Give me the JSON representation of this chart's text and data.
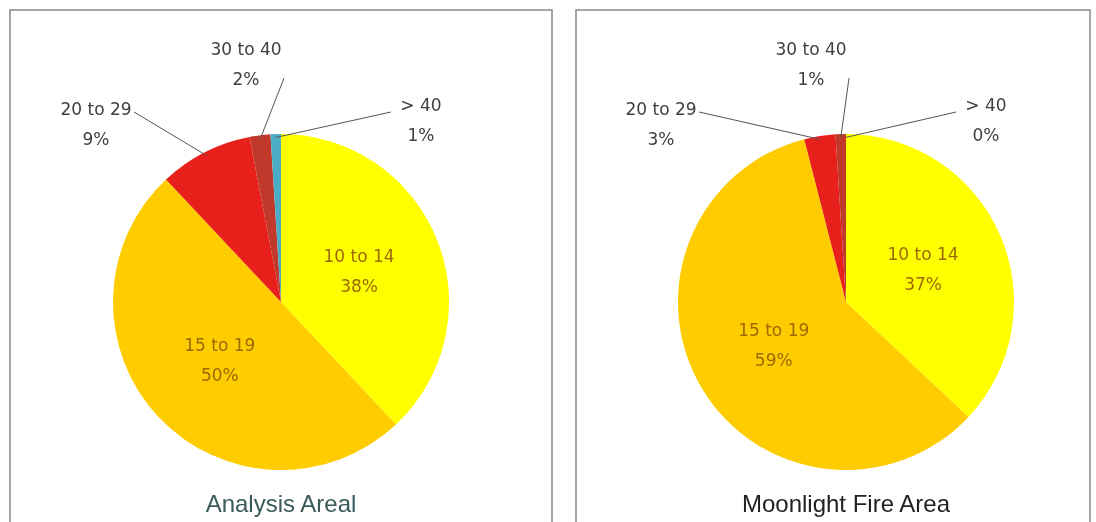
{
  "chart_data": [
    {
      "type": "pie",
      "title": "Analysis Areal",
      "categories": [
        "10 to 14",
        "15 to 19",
        "20 to 29",
        "30 to 40",
        "> 40"
      ],
      "values": [
        38,
        50,
        9,
        2,
        1
      ],
      "value_labels": [
        "38%",
        "50%",
        "9%",
        "2%",
        "1%"
      ],
      "colors": [
        "#ffff00",
        "#ffcc00",
        "#e8201c",
        "#c0392b",
        "#4bacc6"
      ]
    },
    {
      "type": "pie",
      "title": "Moonlight Fire Area",
      "categories": [
        "10 to 14",
        "15 to 19",
        "20 to 29",
        "30 to 40",
        "> 40"
      ],
      "values": [
        37,
        59,
        3,
        1,
        0
      ],
      "value_labels": [
        "37%",
        "59%",
        "3%",
        "1%",
        "0%"
      ],
      "colors": [
        "#ffff00",
        "#ffcc00",
        "#e8201c",
        "#c0392b",
        "#4bacc6"
      ]
    }
  ]
}
